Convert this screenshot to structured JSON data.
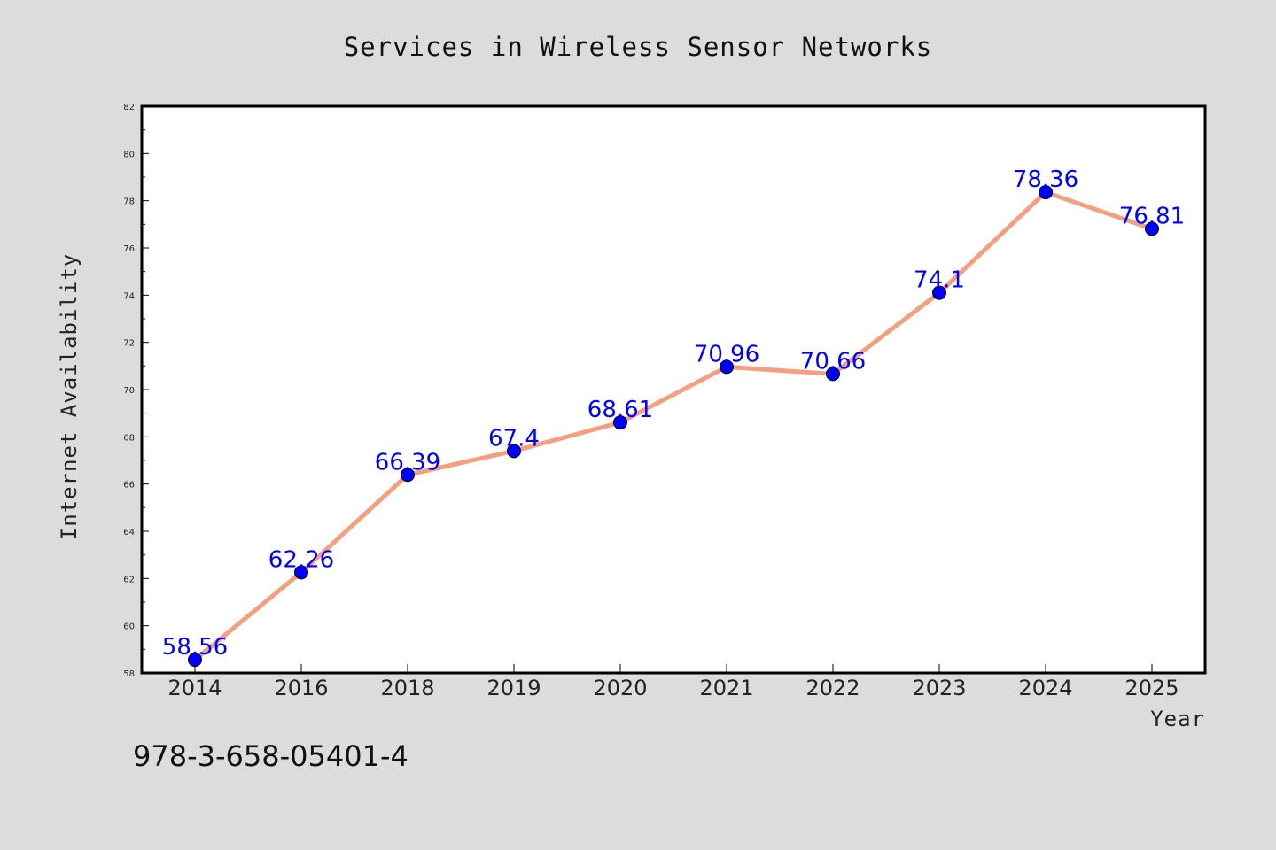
{
  "colors": {
    "background": "#dcdcdc",
    "plot_background": "#ffffff",
    "line": "#f4a07f",
    "marker": "#0000ff",
    "data_label": "#0000ff"
  },
  "footer_text": "978-3-658-05401-4",
  "chart_data": {
    "type": "line",
    "title": "Services in Wireless Sensor Networks",
    "xlabel": "Year",
    "ylabel": "Internet Availability",
    "categories": [
      "2014",
      "2016",
      "2018",
      "2019",
      "2020",
      "2021",
      "2022",
      "2023",
      "2024",
      "2025"
    ],
    "series": [
      {
        "values": [
          58.56,
          62.26,
          66.39,
          67.4,
          68.61,
          70.96,
          70.66,
          74.1,
          78.36,
          76.81
        ],
        "labels": [
          "58.56",
          "62.26",
          "66.39",
          "67.4",
          "68.61",
          "70.96",
          "70.66",
          "74.1",
          "78.36",
          "76.81"
        ]
      }
    ],
    "ylim": [
      58,
      82
    ],
    "yticks": [
      58,
      60,
      62,
      64,
      66,
      68,
      70,
      72,
      74,
      76,
      78,
      80,
      82
    ],
    "grid": false,
    "legend": "none"
  }
}
